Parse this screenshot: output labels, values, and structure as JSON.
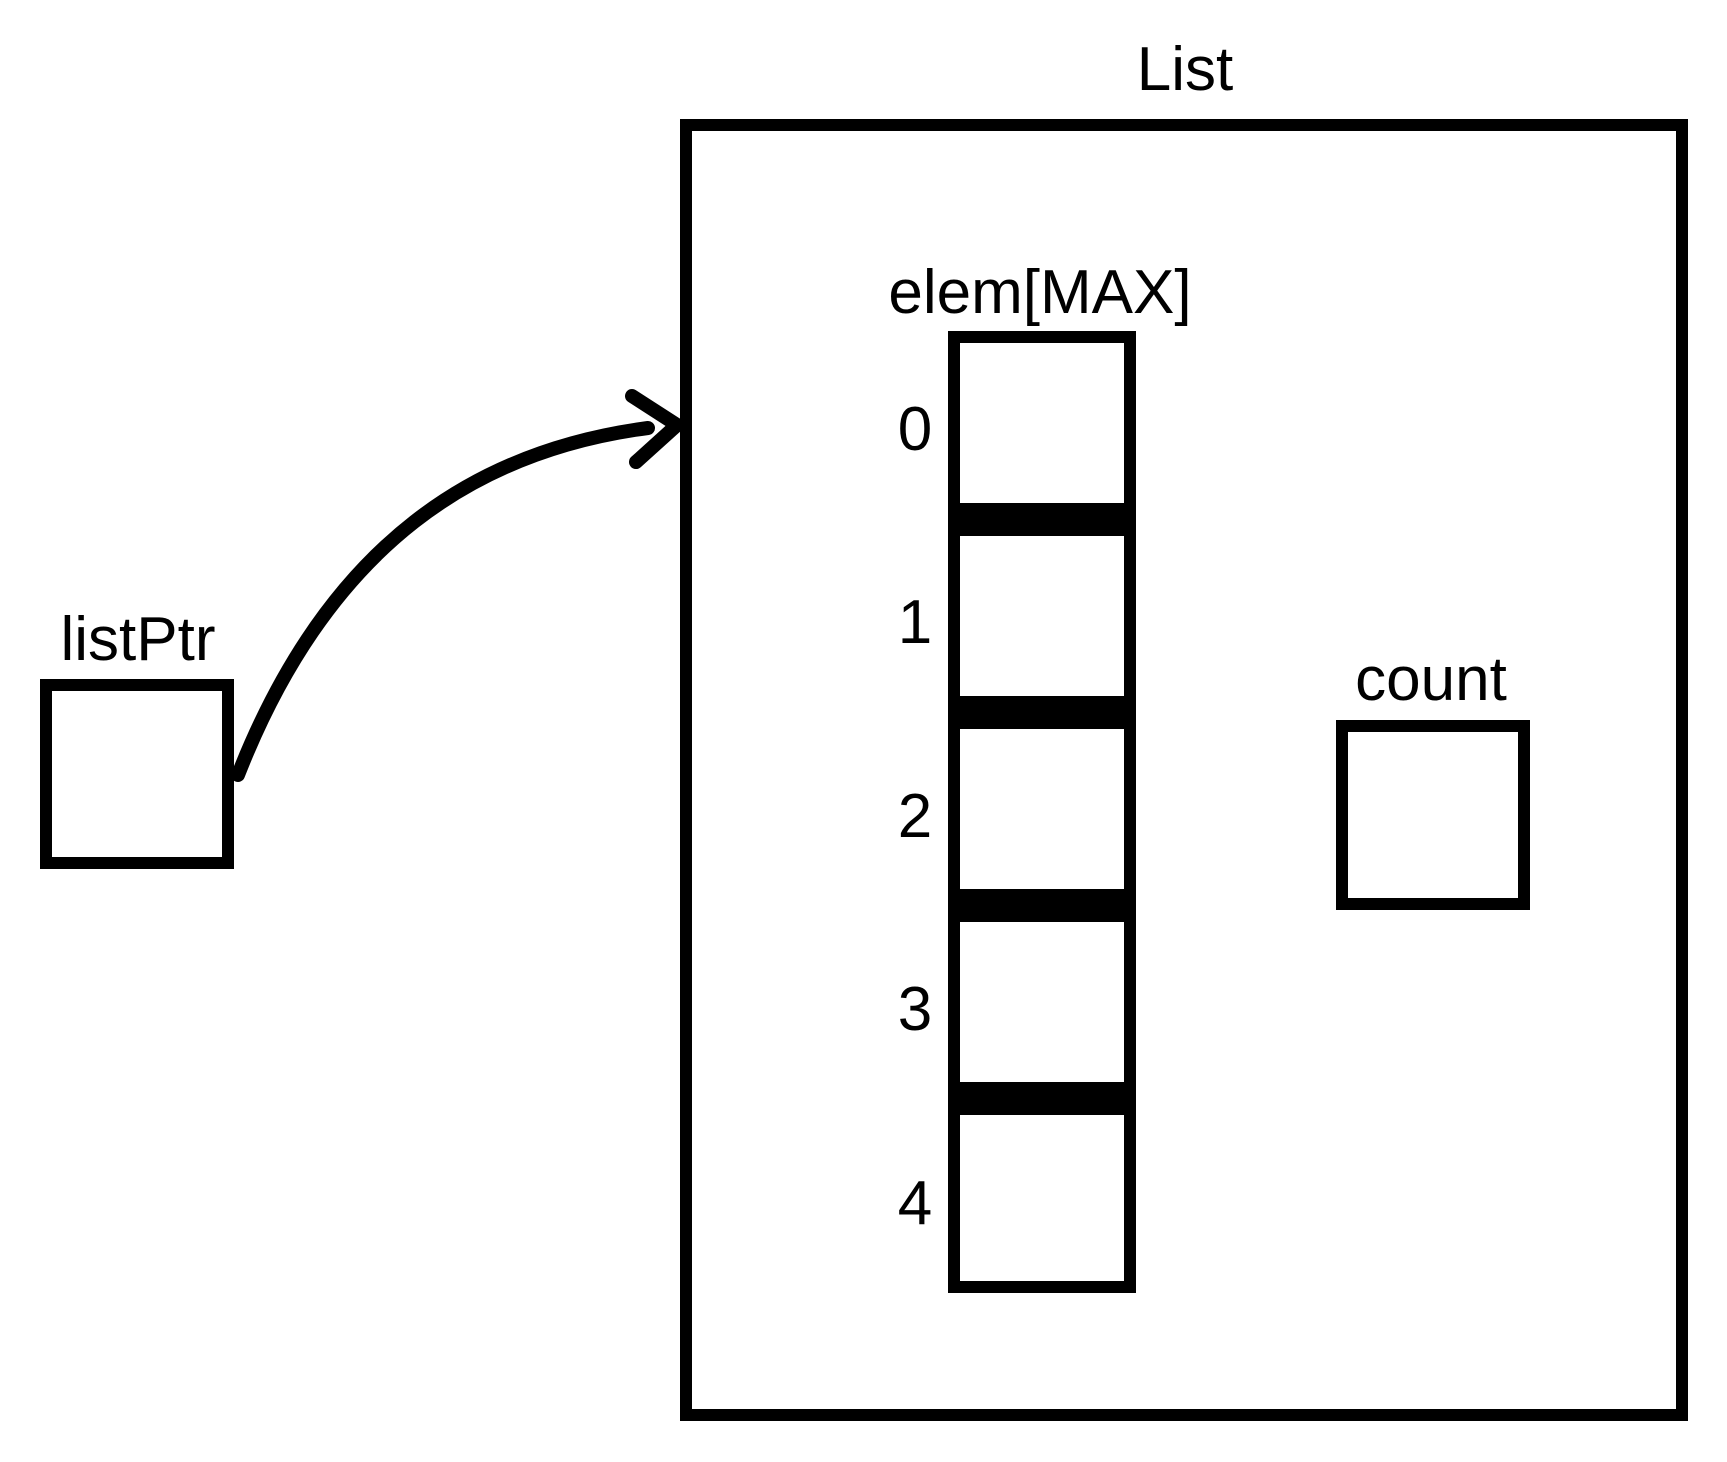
{
  "list_struct": {
    "title": "List",
    "array": {
      "label": "elem[MAX]",
      "indices": [
        "0",
        "1",
        "2",
        "3",
        "4"
      ]
    },
    "count_label": "count"
  },
  "pointer": {
    "label": "listPtr"
  },
  "colors": {
    "stroke": "#000000",
    "background": "#ffffff"
  }
}
